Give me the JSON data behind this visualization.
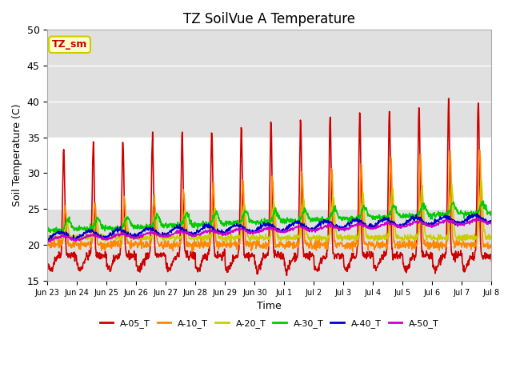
{
  "title": "TZ SoilVue A Temperature",
  "xlabel": "Time",
  "ylabel": "Soil Temperature (C)",
  "ylim": [
    15,
    50
  ],
  "series_names": [
    "A-05_T",
    "A-10_T",
    "A-20_T",
    "A-30_T",
    "A-40_T",
    "A-50_T"
  ],
  "series_colors": [
    "#cc0000",
    "#ff8800",
    "#cccc00",
    "#00cc00",
    "#0000cc",
    "#cc00cc"
  ],
  "shade_band": [
    25,
    35
  ],
  "shade_color": "#e0e0e0",
  "plot_bg": "#f0f0f0",
  "annotation_label": "TZ_sm",
  "annotation_color": "#cc0000",
  "annotation_bg": "#ffffcc",
  "annotation_border": "#cccc00",
  "x_tick_labels": [
    "Jun 23",
    "Jun 24",
    "Jun 25",
    "Jun 26",
    "Jun 27",
    "Jun 28",
    "Jun 29",
    "Jun 30",
    "Jul 1",
    "Jul 2",
    "Jul 3",
    "Jul 4",
    "Jul 5",
    "Jul 6",
    "Jul 7",
    "Jul 8"
  ],
  "num_points": 1200
}
